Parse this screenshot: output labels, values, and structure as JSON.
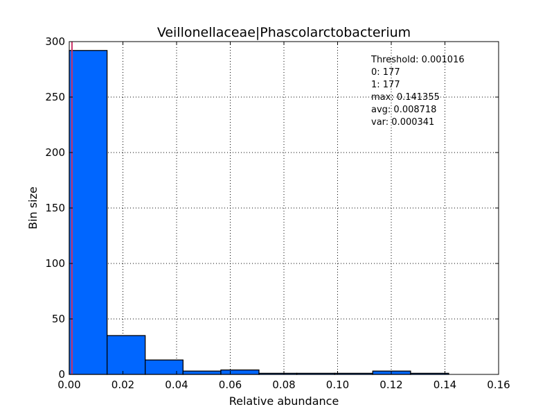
{
  "chart_data": {
    "type": "bar",
    "title": "Veillonellaceae|Phascolarctobacterium",
    "xlabel": "Relative abundance",
    "ylabel": "Bin size",
    "xlim": [
      0.0,
      0.16
    ],
    "ylim": [
      0,
      300
    ],
    "xticks": [
      "0.00",
      "0.02",
      "0.04",
      "0.06",
      "0.08",
      "0.10",
      "0.12",
      "0.14",
      "0.16"
    ],
    "yticks": [
      "0",
      "50",
      "100",
      "150",
      "200",
      "250",
      "300"
    ],
    "grid": true,
    "bins": [
      {
        "start": 0.0,
        "end": 0.0141,
        "value": 292
      },
      {
        "start": 0.0141,
        "end": 0.0283,
        "value": 35
      },
      {
        "start": 0.0283,
        "end": 0.0424,
        "value": 13
      },
      {
        "start": 0.0424,
        "end": 0.0565,
        "value": 3
      },
      {
        "start": 0.0565,
        "end": 0.0707,
        "value": 4
      },
      {
        "start": 0.0707,
        "end": 0.0848,
        "value": 1
      },
      {
        "start": 0.0848,
        "end": 0.0989,
        "value": 1
      },
      {
        "start": 0.0989,
        "end": 0.1131,
        "value": 1
      },
      {
        "start": 0.1131,
        "end": 0.1272,
        "value": 3
      },
      {
        "start": 0.1272,
        "end": 0.1414,
        "value": 1
      }
    ],
    "threshold_line": 0.001016,
    "annotations": [
      "Threshold: 0.001016",
      "0: 177",
      "1: 177",
      "max: 0.141355",
      "avg: 0.008718",
      "var: 0.000341"
    ],
    "colors": {
      "bar_fill": "#0066ff",
      "bar_edge": "#000000",
      "threshold": "#cc3366",
      "grid": "#000000"
    }
  }
}
